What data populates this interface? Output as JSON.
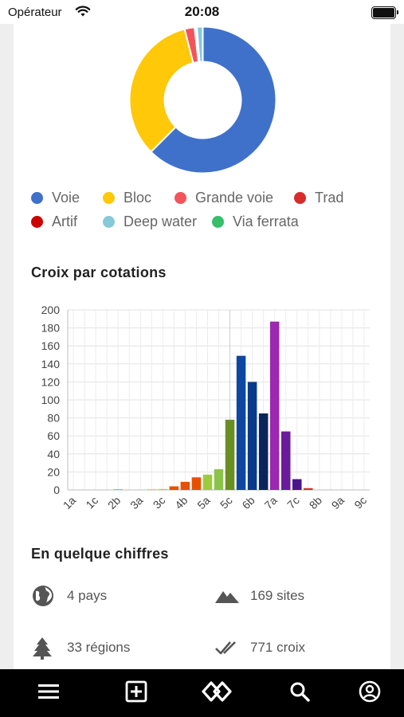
{
  "status_bar": {
    "carrier": "Opérateur",
    "time": "20:08"
  },
  "donut_chart": {
    "type": "pie",
    "slices": [
      {
        "name": "Voie",
        "value": 62.5,
        "color": "#3F71CB"
      },
      {
        "name": "Bloc",
        "value": 33.5,
        "color": "#FFC809"
      },
      {
        "name": "Grande voie",
        "value": 2.2,
        "color": "#F2545B"
      },
      {
        "name": "Trad",
        "value": 0.3,
        "color": "#D92B2B"
      },
      {
        "name": "Artif",
        "value": 0.2,
        "color": "#CC0000"
      },
      {
        "name": "Deep water",
        "value": 1.3,
        "color": "#86C9D9"
      },
      {
        "name": "Via ferrata",
        "value": 0,
        "color": "#36BE6B"
      }
    ]
  },
  "legend": [
    {
      "label": "Voie",
      "color": "#3F71CB"
    },
    {
      "label": "Bloc",
      "color": "#FFC809"
    },
    {
      "label": "Grande voie",
      "color": "#F2545B"
    },
    {
      "label": "Trad",
      "color": "#D92B2B"
    },
    {
      "label": "Artif",
      "color": "#CC0000"
    },
    {
      "label": "Deep water",
      "color": "#86C9D9"
    },
    {
      "label": "Via ferrata",
      "color": "#36BE6B"
    }
  ],
  "grades_section": {
    "title": "Croix par cotations"
  },
  "chart_data": {
    "type": "bar",
    "title": "Croix par cotations",
    "xlabel": "",
    "ylabel": "",
    "ylim": [
      0,
      200
    ],
    "yticks": [
      0,
      20,
      40,
      60,
      80,
      100,
      120,
      140,
      160,
      180,
      200
    ],
    "categories": [
      "1a",
      "1b",
      "1c",
      "2a",
      "2b",
      "2c",
      "3a",
      "3b",
      "3c",
      "4a",
      "4b",
      "4c",
      "5a",
      "5b",
      "5c",
      "6a",
      "6b",
      "6c",
      "7a",
      "7b",
      "7c",
      "8a",
      "8b",
      "8c",
      "9a",
      "9b",
      "9c"
    ],
    "tick_labels": [
      "1a",
      "1c",
      "2b",
      "3a",
      "3c",
      "4b",
      "5a",
      "5c",
      "6b",
      "7a",
      "7c",
      "8b",
      "9a",
      "9c"
    ],
    "values": [
      0,
      0,
      0,
      0,
      1,
      0,
      0,
      1,
      1,
      4,
      9,
      14,
      17,
      23,
      78,
      149,
      120,
      85,
      187,
      65,
      12,
      2,
      0,
      0,
      0,
      0,
      0
    ],
    "colors": [
      "#9e9e9e",
      "#9e9e9e",
      "#9e9e9e",
      "#7ec8e3",
      "#7ec8e3",
      "#7ec8e3",
      "#ffd54f",
      "#ffca28",
      "#ffb300",
      "#e65100",
      "#e65100",
      "#e65100",
      "#9ccc3c",
      "#8bc34a",
      "#6b8e23",
      "#0d47a1",
      "#0a3a8a",
      "#0a2559",
      "#9c27b0",
      "#6a1b9a",
      "#4a148c",
      "#d32f2f",
      "#c62828",
      "#b71c1c",
      "#212121",
      "#212121",
      "#212121"
    ],
    "grid": true
  },
  "stats_section": {
    "title": "En quelque chiffres",
    "items": [
      {
        "icon": "globe-icon",
        "text": "4 pays"
      },
      {
        "icon": "mountain-icon",
        "text": "169 sites"
      },
      {
        "icon": "tree-icon",
        "text": "33 régions"
      },
      {
        "icon": "double-check-icon",
        "text": "771 croix"
      }
    ]
  },
  "bottom_nav": [
    {
      "icon": "menu-icon"
    },
    {
      "icon": "add-icon"
    },
    {
      "icon": "logo-icon"
    },
    {
      "icon": "search-icon"
    },
    {
      "icon": "profile-icon"
    }
  ]
}
